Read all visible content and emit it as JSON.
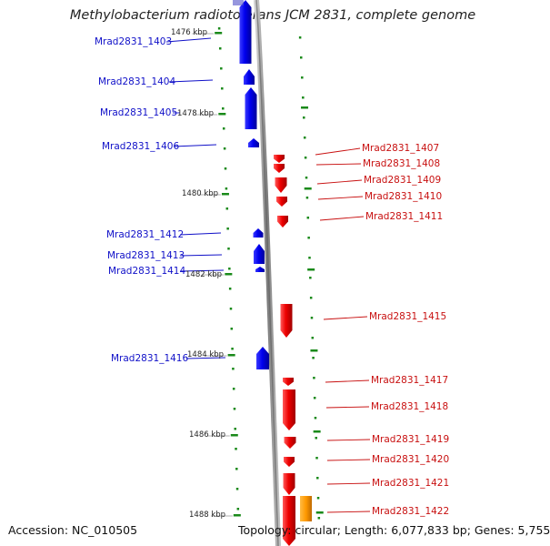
{
  "title": "Methylobacterium radiotolerans JCM 2831, complete genome",
  "footer": {
    "accession": "Accession: NC_010505",
    "topology": "Topology: circular; Length: 6,077,833 bp; Genes: 5,755"
  },
  "colors": {
    "forward_gene": "#ff0000",
    "reverse_gene": "#0000ff",
    "other_gene": "#ff9900",
    "tick": "#1a8a1a",
    "backbone": "#8c8c8c"
  },
  "ticks": [
    {
      "label": "1476 kbp"
    },
    {
      "label": "1478 kbp"
    },
    {
      "label": "1480 kbp"
    },
    {
      "label": "1482 kbp"
    },
    {
      "label": "1484 kbp"
    },
    {
      "label": "1486 kbp"
    },
    {
      "label": "1488 kbp"
    }
  ],
  "left_genes": [
    {
      "label": "Mrad2831_1403"
    },
    {
      "label": "Mrad2831_1404"
    },
    {
      "label": "Mrad2831_1405"
    },
    {
      "label": "Mrad2831_1406"
    },
    {
      "label": "Mrad2831_1412"
    },
    {
      "label": "Mrad2831_1413"
    },
    {
      "label": "Mrad2831_1414"
    },
    {
      "label": "Mrad2831_1416"
    }
  ],
  "right_genes": [
    {
      "label": "Mrad2831_1407"
    },
    {
      "label": "Mrad2831_1408"
    },
    {
      "label": "Mrad2831_1409"
    },
    {
      "label": "Mrad2831_1410"
    },
    {
      "label": "Mrad2831_1411"
    },
    {
      "label": "Mrad2831_1415"
    },
    {
      "label": "Mrad2831_1417"
    },
    {
      "label": "Mrad2831_1418"
    },
    {
      "label": "Mrad2831_1419"
    },
    {
      "label": "Mrad2831_1420"
    },
    {
      "label": "Mrad2831_1421"
    },
    {
      "label": "Mrad2831_1422"
    }
  ]
}
